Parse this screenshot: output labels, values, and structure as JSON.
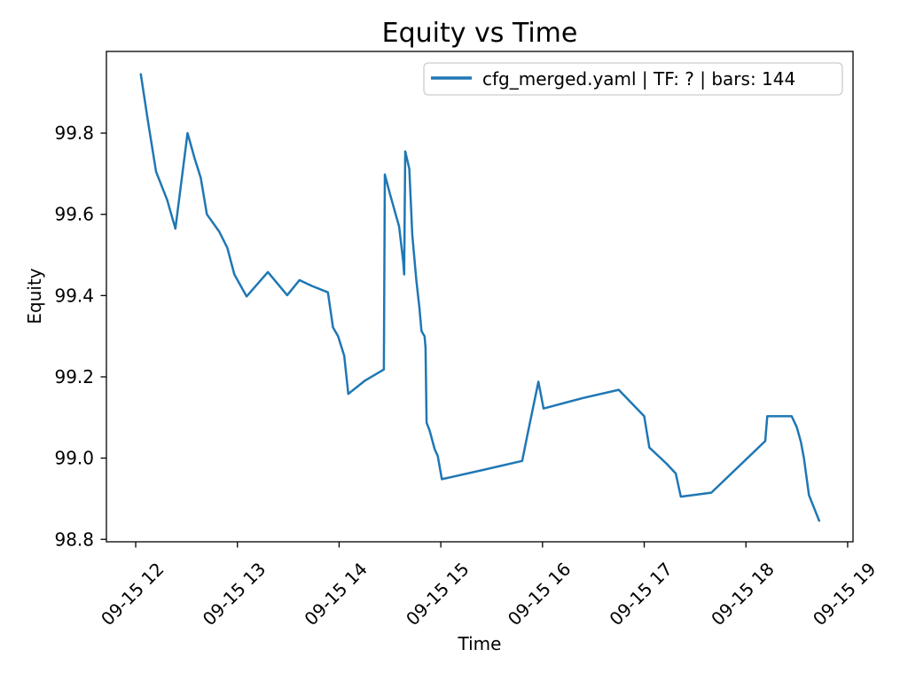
{
  "figure": {
    "background": "#ffffff",
    "line_color": "#1f77b4",
    "axis_color": "#000000",
    "legend_border_color": "#cccccc"
  },
  "chart_data": {
    "type": "line",
    "title": "Equity vs Time",
    "xlabel": "Time",
    "ylabel": "Equity",
    "grid": false,
    "legend": {
      "position": "upper right",
      "entries": [
        "cfg_merged.yaml | TF: ? | bars: 144"
      ]
    },
    "x_axis": {
      "description": "time of day on 09-15, expressed in fractional hours",
      "lim": [
        11.712,
        19.053
      ],
      "ticks": [
        12,
        13,
        14,
        15,
        16,
        17,
        18,
        19
      ],
      "tick_labels": [
        "09-15 12",
        "09-15 13",
        "09-15 14",
        "09-15 15",
        "09-15 16",
        "09-15 17",
        "09-15 18",
        "09-15 19"
      ],
      "tick_rotation_deg": 45
    },
    "y_axis": {
      "lim": [
        98.794,
        100.001
      ],
      "ticks": [
        98.8,
        99.0,
        99.2,
        99.4,
        99.6,
        99.8
      ],
      "tick_labels": [
        "98.8",
        "99.0",
        "99.2",
        "99.4",
        "99.6",
        "99.8"
      ]
    },
    "series": [
      {
        "name": "cfg_merged.yaml | TF: ? | bars: 144",
        "color": "#1f77b4",
        "points_hour_equity": [
          [
            12.05,
            99.945
          ],
          [
            12.12,
            99.83
          ],
          [
            12.2,
            99.705
          ],
          [
            12.31,
            99.635
          ],
          [
            12.39,
            99.565
          ],
          [
            12.51,
            99.8
          ],
          [
            12.58,
            99.737
          ],
          [
            12.64,
            99.69
          ],
          [
            12.7,
            99.6
          ],
          [
            12.82,
            99.558
          ],
          [
            12.9,
            99.518
          ],
          [
            12.97,
            99.452
          ],
          [
            13.09,
            99.398
          ],
          [
            13.3,
            99.458
          ],
          [
            13.49,
            99.401
          ],
          [
            13.61,
            99.438
          ],
          [
            13.73,
            99.424
          ],
          [
            13.89,
            99.408
          ],
          [
            13.94,
            99.322
          ],
          [
            13.99,
            99.3
          ],
          [
            14.05,
            99.252
          ],
          [
            14.09,
            99.158
          ],
          [
            14.25,
            99.19
          ],
          [
            14.44,
            99.218
          ],
          [
            14.45,
            99.698
          ],
          [
            14.5,
            99.65
          ],
          [
            14.59,
            99.57
          ],
          [
            14.63,
            99.484
          ],
          [
            14.64,
            99.452
          ],
          [
            14.65,
            99.755
          ],
          [
            14.69,
            99.712
          ],
          [
            14.72,
            99.548
          ],
          [
            14.76,
            99.436
          ],
          [
            14.79,
            99.37
          ],
          [
            14.81,
            99.313
          ],
          [
            14.84,
            99.3
          ],
          [
            14.85,
            99.272
          ],
          [
            14.86,
            99.087
          ],
          [
            14.89,
            99.068
          ],
          [
            14.94,
            99.022
          ],
          [
            14.97,
            99.005
          ],
          [
            15.01,
            98.948
          ],
          [
            15.4,
            98.97
          ],
          [
            15.8,
            98.993
          ],
          [
            15.85,
            99.055
          ],
          [
            15.96,
            99.188
          ],
          [
            16.01,
            99.122
          ],
          [
            16.4,
            99.148
          ],
          [
            16.75,
            99.168
          ],
          [
            17.0,
            99.103
          ],
          [
            17.05,
            99.026
          ],
          [
            17.22,
            98.986
          ],
          [
            17.31,
            98.962
          ],
          [
            17.36,
            98.905
          ],
          [
            17.66,
            98.915
          ],
          [
            18.19,
            99.042
          ],
          [
            18.21,
            99.103
          ],
          [
            18.45,
            99.103
          ],
          [
            18.5,
            99.076
          ],
          [
            18.54,
            99.04
          ],
          [
            18.57,
            99.0
          ],
          [
            18.62,
            98.909
          ],
          [
            18.72,
            98.846
          ]
        ]
      }
    ]
  }
}
